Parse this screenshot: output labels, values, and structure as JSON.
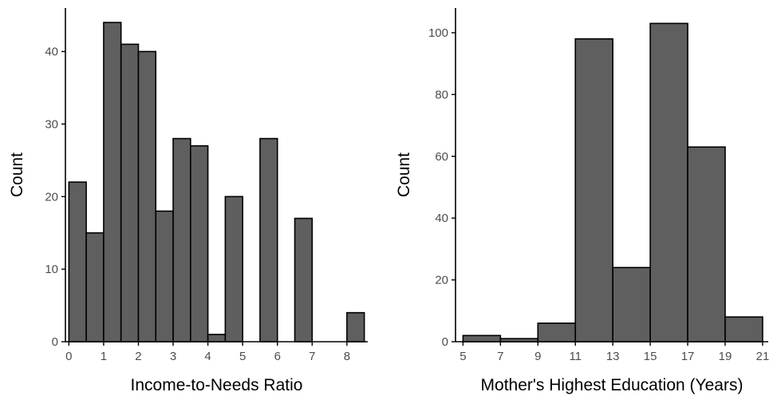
{
  "chart_data": [
    {
      "type": "bar",
      "title": "",
      "xlabel": "Income-to-Needs Ratio",
      "ylabel": "Count",
      "xlim": [
        -0.1,
        8.6
      ],
      "ylim": [
        0,
        46
      ],
      "x_ticks": [
        0,
        1,
        2,
        3,
        4,
        5,
        6,
        7,
        8
      ],
      "y_ticks": [
        0,
        10,
        20,
        30,
        40
      ],
      "x_tick_labels": [
        "0",
        "1",
        "2",
        "3",
        "4",
        "5",
        "6",
        "7",
        "8"
      ],
      "y_tick_labels": [
        "0",
        "10",
        "20",
        "30",
        "40"
      ],
      "grid": false,
      "bin_edges": [
        0,
        0.5,
        1.0,
        1.5,
        2.0,
        2.5,
        3.0,
        3.5,
        4.0,
        4.5,
        5.0,
        5.5,
        6.0,
        6.5,
        7.0,
        7.5,
        8.0,
        8.5
      ],
      "values": [
        22,
        15,
        44,
        41,
        40,
        18,
        28,
        27,
        1,
        20,
        0,
        28,
        0,
        17,
        0,
        0,
        4
      ]
    },
    {
      "type": "bar",
      "title": "",
      "xlabel": "Mother's Highest Education (Years)",
      "ylabel": "Count",
      "xlim": [
        4.6,
        21.3
      ],
      "ylim": [
        0,
        108
      ],
      "x_ticks": [
        5,
        7,
        9,
        11,
        13,
        15,
        17,
        19,
        21
      ],
      "y_ticks": [
        0,
        20,
        40,
        60,
        80,
        100
      ],
      "x_tick_labels": [
        "5",
        "7",
        "9",
        "11",
        "13",
        "15",
        "17",
        "19",
        "21"
      ],
      "y_tick_labels": [
        "0",
        "20",
        "40",
        "60",
        "80",
        "100"
      ],
      "grid": false,
      "bin_edges": [
        5,
        7,
        9,
        11,
        13,
        15,
        17,
        19,
        21
      ],
      "values": [
        2,
        1,
        6,
        98,
        24,
        103,
        63,
        8
      ]
    }
  ]
}
